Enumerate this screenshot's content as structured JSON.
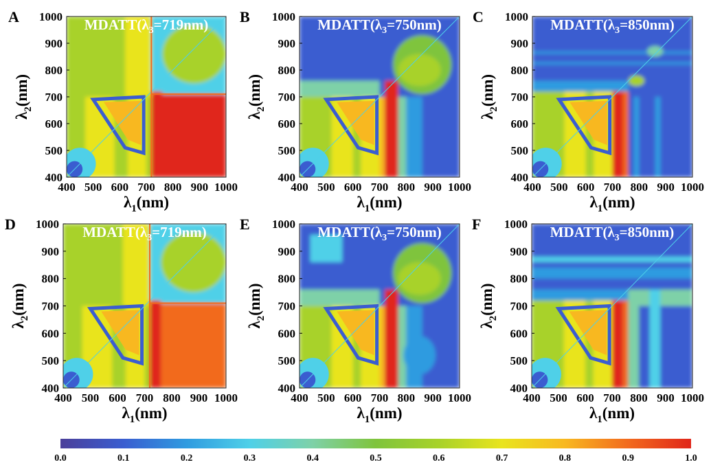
{
  "chart_data": [
    {
      "type": "heatmap",
      "panel_letter": "A",
      "title_text": "MDATT(λ",
      "title_sub": "3",
      "title_value": "=719nm)",
      "xlabel_main": "λ",
      "xlabel_sub": "1",
      "xlabel_unit": "(nm)",
      "ylabel_main": "λ",
      "ylabel_sub": "2",
      "ylabel_unit": "(nm)",
      "xlim": [
        400,
        1000
      ],
      "ylim": [
        400,
        1000
      ],
      "x_ticks": [
        "400",
        "500",
        "600",
        "700",
        "800",
        "900",
        "1000"
      ],
      "y_ticks": [
        "400",
        "500",
        "600",
        "700",
        "800",
        "900",
        "1000"
      ],
      "lambda3": 719
    },
    {
      "type": "heatmap",
      "panel_letter": "B",
      "title_text": "MDATT(λ",
      "title_sub": "3",
      "title_value": "=750nm)",
      "xlabel_main": "λ",
      "xlabel_sub": "1",
      "xlabel_unit": "(nm)",
      "ylabel_main": "λ",
      "ylabel_sub": "2",
      "ylabel_unit": "(nm)",
      "xlim": [
        400,
        1000
      ],
      "ylim": [
        400,
        1000
      ],
      "x_ticks": [
        "400",
        "500",
        "600",
        "700",
        "800",
        "900",
        "1000"
      ],
      "y_ticks": [
        "400",
        "500",
        "600",
        "700",
        "800",
        "900",
        "1000"
      ],
      "lambda3": 750
    },
    {
      "type": "heatmap",
      "panel_letter": "C",
      "title_text": "MDATT(λ",
      "title_sub": "3",
      "title_value": "=850nm)",
      "xlabel_main": "λ",
      "xlabel_sub": "1",
      "xlabel_unit": "(nm)",
      "ylabel_main": "λ",
      "ylabel_sub": "2",
      "ylabel_unit": "(nm)",
      "xlim": [
        400,
        1000
      ],
      "ylim": [
        400,
        1000
      ],
      "x_ticks": [
        "400",
        "500",
        "600",
        "700",
        "800",
        "900",
        "1000"
      ],
      "y_ticks": [
        "400",
        "500",
        "600",
        "700",
        "800",
        "900",
        "1000"
      ],
      "lambda3": 850
    },
    {
      "type": "heatmap",
      "panel_letter": "D",
      "title_text": "MDATT(λ",
      "title_sub": "3",
      "title_value": "=719nm)",
      "xlabel_main": "λ",
      "xlabel_sub": "1",
      "xlabel_unit": "(nm)",
      "ylabel_main": "λ",
      "ylabel_sub": "2",
      "ylabel_unit": "(nm)",
      "xlim": [
        400,
        1000
      ],
      "ylim": [
        400,
        1000
      ],
      "x_ticks": [
        "400",
        "500",
        "600",
        "700",
        "800",
        "900",
        "1000"
      ],
      "y_ticks": [
        "400",
        "500",
        "600",
        "700",
        "800",
        "900",
        "1000"
      ],
      "lambda3": 719
    },
    {
      "type": "heatmap",
      "panel_letter": "E",
      "title_text": "MDATT(λ",
      "title_sub": "3",
      "title_value": "=750nm)",
      "xlabel_main": "λ",
      "xlabel_sub": "1",
      "xlabel_unit": "(nm)",
      "ylabel_main": "λ",
      "ylabel_sub": "2",
      "ylabel_unit": "(nm)",
      "xlim": [
        400,
        1000
      ],
      "ylim": [
        400,
        1000
      ],
      "x_ticks": [
        "400",
        "500",
        "600",
        "700",
        "800",
        "900",
        "1000"
      ],
      "y_ticks": [
        "400",
        "500",
        "600",
        "700",
        "800",
        "900",
        "1000"
      ],
      "lambda3": 750
    },
    {
      "type": "heatmap",
      "panel_letter": "F",
      "title_text": "MDATT(λ",
      "title_sub": "3",
      "title_value": "=850nm)",
      "xlabel_main": "λ",
      "xlabel_sub": "1",
      "xlabel_unit": "(nm)",
      "ylabel_main": "λ",
      "ylabel_sub": "2",
      "ylabel_unit": "(nm)",
      "xlim": [
        400,
        1000
      ],
      "ylim": [
        400,
        1000
      ],
      "x_ticks": [
        "400",
        "500",
        "600",
        "700",
        "800",
        "900",
        "1000"
      ],
      "y_ticks": [
        "400",
        "500",
        "600",
        "700",
        "800",
        "900",
        "1000"
      ],
      "lambda3": 850
    }
  ],
  "colorbar": {
    "range": [
      0.0,
      1.0
    ],
    "tick_labels": [
      "0.0",
      "0.1",
      "0.2",
      "0.3",
      "0.4",
      "0.5",
      "0.6",
      "0.7",
      "0.8",
      "0.9",
      "1.0"
    ],
    "colors": [
      "#4b3f9a",
      "#3a5dd0",
      "#2f9be0",
      "#4fd0e8",
      "#7ed1a8",
      "#7fc43c",
      "#a8d22a",
      "#e9e41e",
      "#f8b820",
      "#f26a1e",
      "#e0261a"
    ]
  }
}
